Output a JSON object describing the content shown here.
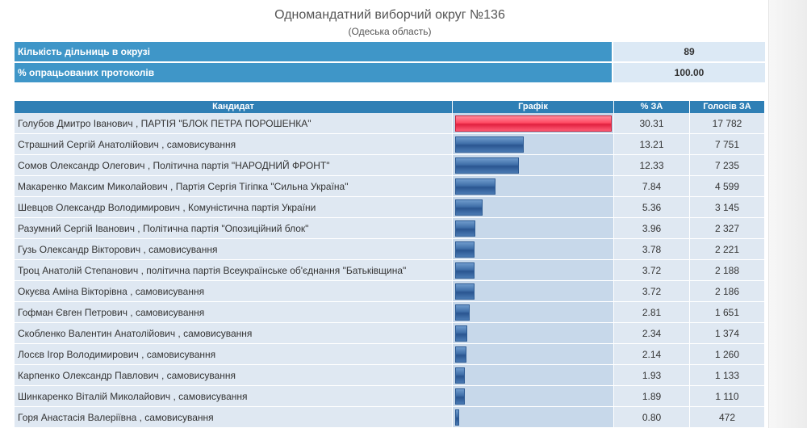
{
  "header": {
    "title": "Одномандатний виборчий округ №136",
    "subtitle": "(Одеська область)"
  },
  "summary": [
    {
      "label": "Кількість дільниць в окрузі",
      "value": "89"
    },
    {
      "label": "% опрацьованих протоколів",
      "value": "100.00"
    }
  ],
  "columns": {
    "candidate": "Кандидат",
    "chart": "Графік",
    "percent": "% ЗА",
    "votes": "Голосів ЗА"
  },
  "colors": {
    "leader_bar": "#ff4a63",
    "bar": "#3e6ea8",
    "header": "#2f7fb5"
  },
  "rows": [
    {
      "name": "Голубов Дмитро Іванович , ПАРТІЯ \"БЛОК ПЕТРА ПОРОШЕНКА\"",
      "percent": "30.31",
      "votes": "17 782"
    },
    {
      "name": "Страшний Сергій Анатолійович , самовисування",
      "percent": "13.21",
      "votes": "7 751"
    },
    {
      "name": "Сомов Олександр Олегович , Політична партія \"НАРОДНИЙ ФРОНТ\"",
      "percent": "12.33",
      "votes": "7 235"
    },
    {
      "name": "Макаренко Максим Миколайович , Партія Сергія Тігіпка \"Сильна Україна\"",
      "percent": "7.84",
      "votes": "4 599"
    },
    {
      "name": "Шевцов Олександр Володимирович , Комуністична партія України",
      "percent": "5.36",
      "votes": "3 145"
    },
    {
      "name": "Разумний Сергій Іванович , Політична партія \"Опозиційний блок\"",
      "percent": "3.96",
      "votes": "2 327"
    },
    {
      "name": "Гузь Олександр Вікторович , самовисування",
      "percent": "3.78",
      "votes": "2 221"
    },
    {
      "name": "Троц Анатолій Степанович , політична партія Всеукраїнське об'єднання \"Батьківщина\"",
      "percent": "3.72",
      "votes": "2 188"
    },
    {
      "name": "Окуєва Аміна Вікторівна , самовисування",
      "percent": "3.72",
      "votes": "2 186"
    },
    {
      "name": "Гофман Євген Петрович , самовисування",
      "percent": "2.81",
      "votes": "1 651"
    },
    {
      "name": "Скобленко Валентин Анатолійович , самовисування",
      "percent": "2.34",
      "votes": "1 374"
    },
    {
      "name": "Лосєв Ігор Володимирович , самовисування",
      "percent": "2.14",
      "votes": "1 260"
    },
    {
      "name": "Карпенко Олександр Павлович , самовисування",
      "percent": "1.93",
      "votes": "1 133"
    },
    {
      "name": "Шинкаренко Віталій Миколайович , самовисування",
      "percent": "1.89",
      "votes": "1 110"
    },
    {
      "name": "Горя Анастасія Валеріївна , самовисування",
      "percent": "0.80",
      "votes": "472"
    }
  ]
}
